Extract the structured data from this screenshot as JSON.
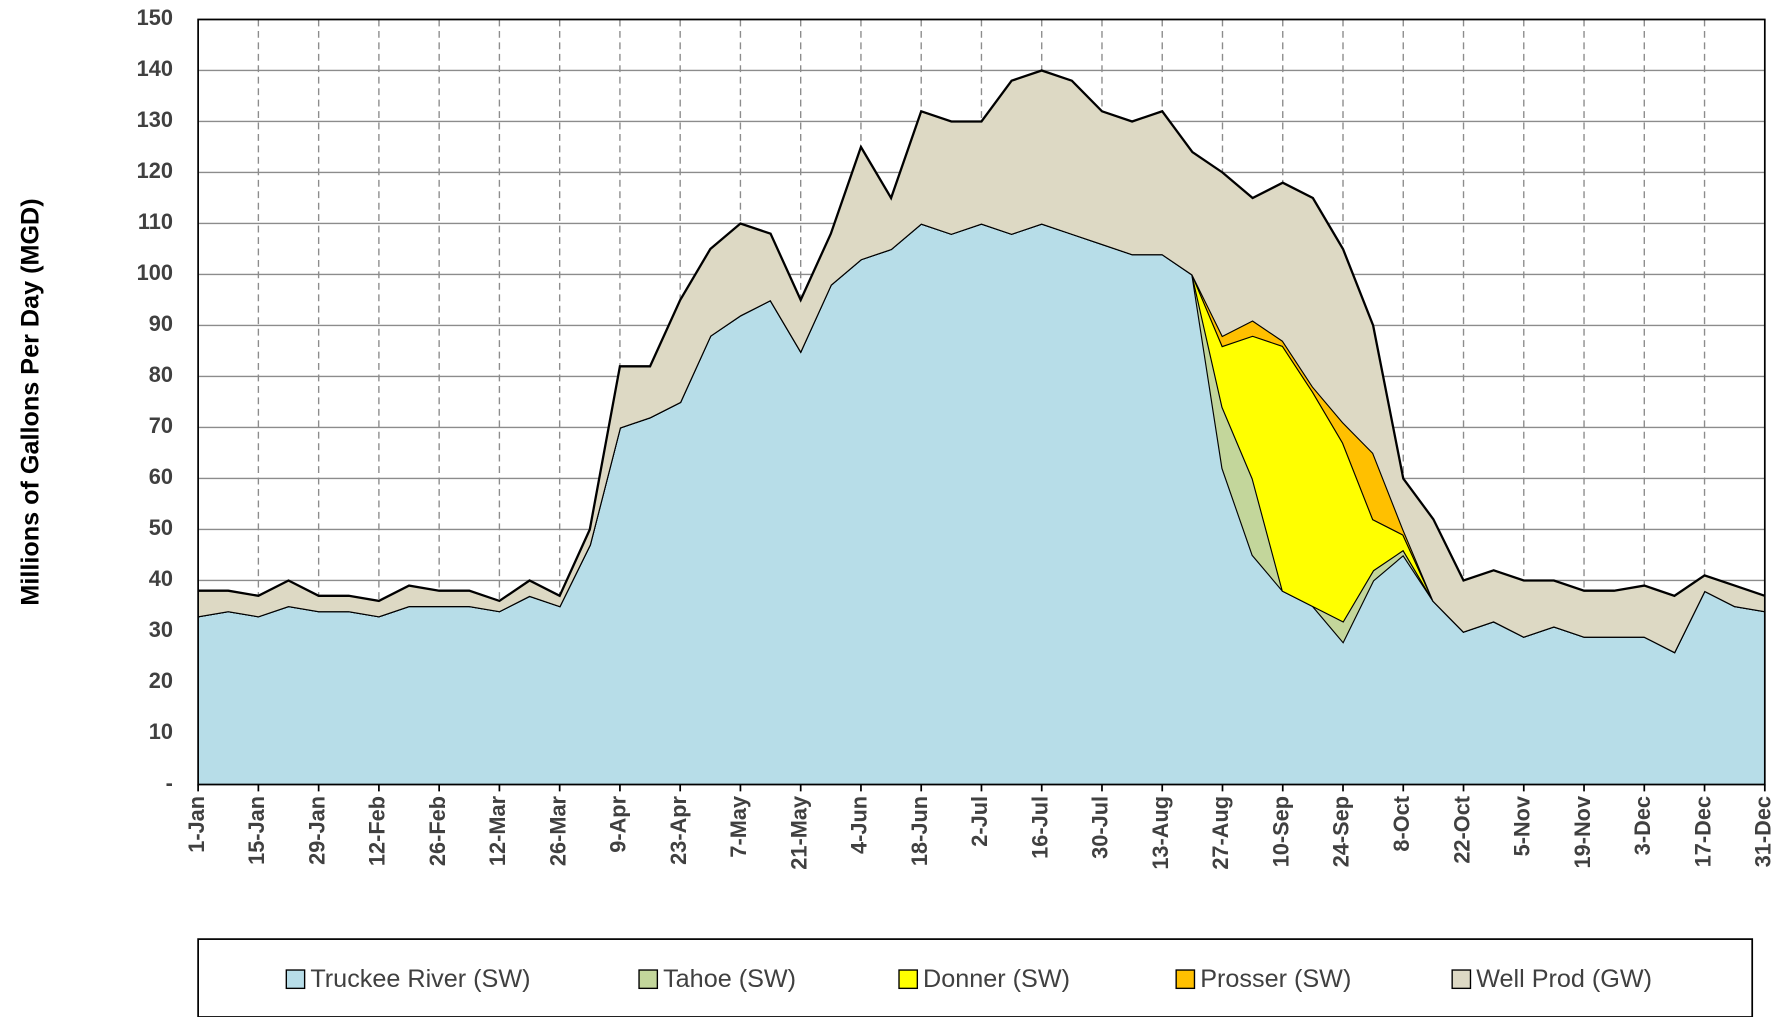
{
  "chart_data": {
    "type": "stacked_area",
    "y_label": "Millions of Gallons Per Day (MGD)",
    "categories": [
      "1-Jan",
      null,
      "15-Jan",
      null,
      "29-Jan",
      null,
      "12-Feb",
      null,
      "26-Feb",
      null,
      "12-Mar",
      null,
      "26-Mar",
      null,
      "9-Apr",
      null,
      "23-Apr",
      null,
      "7-May",
      null,
      "21-May",
      null,
      "4-Jun",
      null,
      "18-Jun",
      null,
      "2-Jul",
      null,
      "16-Jul",
      null,
      "30-Jul",
      null,
      "13-Aug",
      null,
      "27-Aug",
      null,
      "10-Sep",
      null,
      "24-Sep",
      null,
      "8-Oct",
      null,
      "22-Oct",
      null,
      "5-Nov",
      null,
      "19-Nov",
      null,
      "3-Dec",
      null,
      "17-Dec",
      null,
      "31-Dec"
    ],
    "series": [
      {
        "name": "Truckee River (SW)",
        "color": "#b7dde8",
        "values": [
          33,
          34,
          33,
          35,
          34,
          34,
          33,
          35,
          35,
          35,
          34,
          37,
          35,
          47,
          70,
          72,
          75,
          88,
          92,
          95,
          85,
          98,
          103,
          105,
          110,
          108,
          110,
          108,
          110,
          108,
          106,
          104,
          104,
          100,
          62,
          45,
          38,
          35,
          28,
          40,
          45,
          36,
          30,
          32,
          29,
          31,
          29,
          29,
          29,
          26,
          38,
          35,
          34
        ]
      },
      {
        "name": "Tahoe (SW)",
        "color": "#c3d69b",
        "values": [
          0,
          0,
          0,
          0,
          0,
          0,
          0,
          0,
          0,
          0,
          0,
          0,
          0,
          0,
          0,
          0,
          0,
          0,
          0,
          0,
          0,
          0,
          0,
          0,
          0,
          0,
          0,
          0,
          0,
          0,
          0,
          0,
          0,
          0,
          12,
          15,
          0,
          0,
          4,
          2,
          1,
          0,
          0,
          0,
          0,
          0,
          0,
          0,
          0,
          0,
          0,
          0,
          0
        ]
      },
      {
        "name": "Donner (SW)",
        "color": "#ffff00",
        "values": [
          0,
          0,
          0,
          0,
          0,
          0,
          0,
          0,
          0,
          0,
          0,
          0,
          0,
          0,
          0,
          0,
          0,
          0,
          0,
          0,
          0,
          0,
          0,
          0,
          0,
          0,
          0,
          0,
          0,
          0,
          0,
          0,
          0,
          0,
          12,
          28,
          48,
          42,
          35,
          10,
          3,
          0,
          0,
          0,
          0,
          0,
          0,
          0,
          0,
          0,
          0,
          0,
          0
        ]
      },
      {
        "name": "Prosser (SW)",
        "color": "#ffc000",
        "values": [
          0,
          0,
          0,
          0,
          0,
          0,
          0,
          0,
          0,
          0,
          0,
          0,
          0,
          0,
          0,
          0,
          0,
          0,
          0,
          0,
          0,
          0,
          0,
          0,
          0,
          0,
          0,
          0,
          0,
          0,
          0,
          0,
          0,
          0,
          2,
          3,
          1,
          1,
          4,
          13,
          1,
          0,
          0,
          0,
          0,
          0,
          0,
          0,
          0,
          0,
          0,
          0,
          0
        ]
      },
      {
        "name": "Well Prod (GW)",
        "color": "#ddd9c4",
        "values": [
          5,
          4,
          4,
          5,
          3,
          3,
          3,
          4,
          3,
          3,
          2,
          3,
          2,
          3,
          12,
          10,
          20,
          17,
          18,
          13,
          10,
          10,
          22,
          10,
          22,
          22,
          20,
          30,
          30,
          30,
          26,
          26,
          28,
          24,
          32,
          24,
          31,
          37,
          34,
          25,
          10,
          16,
          10,
          10,
          11,
          9,
          9,
          9,
          10,
          11,
          3,
          4,
          3
        ]
      }
    ],
    "ylim": [
      0,
      150
    ],
    "yticks": [
      {
        "value": 0,
        "label": "-"
      },
      10,
      20,
      30,
      40,
      50,
      60,
      70,
      80,
      90,
      100,
      110,
      120,
      130,
      140,
      150
    ],
    "grid": true,
    "legend": "bottom"
  }
}
